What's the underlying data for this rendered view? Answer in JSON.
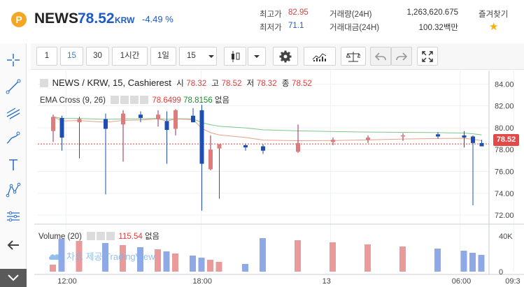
{
  "header": {
    "logo_letter": "P",
    "symbol": "NEWS",
    "price": "78.52",
    "currency": "KRW",
    "change": "-4.49 %",
    "high_label": "최고가",
    "high_value": "82.95",
    "low_label": "최저가",
    "low_value": "71.1",
    "volume_label": "거래량(24H)",
    "volume_value": "1,263,620.675",
    "amount_label": "거래대금(24H)",
    "amount_value": "100.32백만",
    "favorite_label": "즐겨찾기",
    "favorite_icon": "star-icon"
  },
  "toolbar": {
    "interval_1": "1",
    "interval_15": "15",
    "interval_30": "30",
    "interval_1h": "1시간",
    "interval_1d": "1일",
    "interval_select": "15",
    "selected_interval": "15",
    "icons": [
      "candles-icon",
      "chevron-down-icon",
      "gear-icon",
      "indicators-icon",
      "compare-icon",
      "undo-icon",
      "redo-icon",
      "fullscreen-icon"
    ]
  },
  "left_tools": [
    "crosshair-icon",
    "trend-line-icon",
    "fib-icon",
    "brush-icon",
    "text-icon",
    "pattern-icon",
    "measure-icon",
    "back-arrow-icon",
    "collapse-icon"
  ],
  "legend": {
    "title": "NEWS / KRW, 15, Cashierest",
    "o_label": "시",
    "o_value": "78.32",
    "h_label": "고",
    "h_value": "78.52",
    "l_label": "저",
    "l_value": "78.32",
    "c_label": "종",
    "c_value": "78.52",
    "ema_name": "EMA Cross (9, 26)",
    "ema_fast": "78.6499",
    "ema_slow": "78.8156",
    "ema_extra": "없음",
    "vol_name": "Volume (20)",
    "vol_value": "115.54",
    "vol_extra": "없음",
    "watermark": "차트 제공 TradingView"
  },
  "colors": {
    "up": "#e07b7b",
    "down": "#1e4fb0",
    "vol_up": "#e99a9a",
    "vol_down": "#8fa8e6",
    "ema_fast": "#e8a08a",
    "ema_slow": "#7bc88a",
    "price_line": "#e24a4a"
  },
  "chart_data": {
    "type": "candlestick",
    "x_ticks": [
      "12:00",
      "18:00",
      "13",
      "06:00",
      "09:3"
    ],
    "x_tick_pos": [
      5,
      29,
      52,
      75,
      84.5
    ],
    "y_ticks": [
      "84.00",
      "82.00",
      "80.00",
      "78.00",
      "76.00",
      "74.00",
      "72.00"
    ],
    "ylim": [
      71.3,
      84.6
    ],
    "vol_ticks": [
      "40K",
      "20K",
      "0"
    ],
    "vol_ylim": [
      0,
      50000
    ],
    "last_price": "78.52",
    "candles": [
      [
        0,
        79.7,
        81.2,
        78.7,
        81.0
      ],
      [
        1,
        80.9,
        81.1,
        77.9,
        79.1
      ],
      [
        3,
        80.5,
        81.0,
        77.2,
        80.8
      ],
      [
        6,
        80.8,
        81.3,
        73.9,
        79.9
      ],
      [
        8,
        80.3,
        81.6,
        76.9,
        81.3
      ],
      [
        10,
        81.2,
        81.5,
        80.5,
        80.9
      ],
      [
        12,
        80.8,
        81.6,
        80.1,
        81.2
      ],
      [
        13,
        80.6,
        81.5,
        76.7,
        79.8
      ],
      [
        14,
        79.9,
        81.7,
        79.3,
        81.6
      ],
      [
        16,
        81.1,
        81.8,
        80.5,
        80.5
      ],
      [
        17,
        81.6,
        82.1,
        72.4,
        76.7
      ],
      [
        18,
        76.2,
        79.3,
        76.1,
        78.0
      ],
      [
        19,
        78.1,
        78.4,
        73.5,
        78.5
      ],
      [
        22,
        78.4,
        78.5,
        77.9,
        78.2
      ],
      [
        24,
        78.3,
        78.5,
        77.6,
        77.9
      ],
      [
        28,
        77.8,
        80.3,
        77.7,
        78.6
      ],
      [
        32,
        78.7,
        79.1,
        78.4,
        78.9
      ],
      [
        36,
        78.9,
        79.3,
        78.6,
        79.1
      ],
      [
        40,
        79.2,
        79.5,
        78.8,
        79.3
      ],
      [
        44,
        79.4,
        79.6,
        79.0,
        79.2
      ],
      [
        47,
        79.3,
        79.7,
        78.2,
        79.1
      ],
      [
        48,
        79.2,
        79.3,
        72.9,
        78.6
      ],
      [
        49,
        78.6,
        78.9,
        78.4,
        78.3
      ]
    ]
  }
}
